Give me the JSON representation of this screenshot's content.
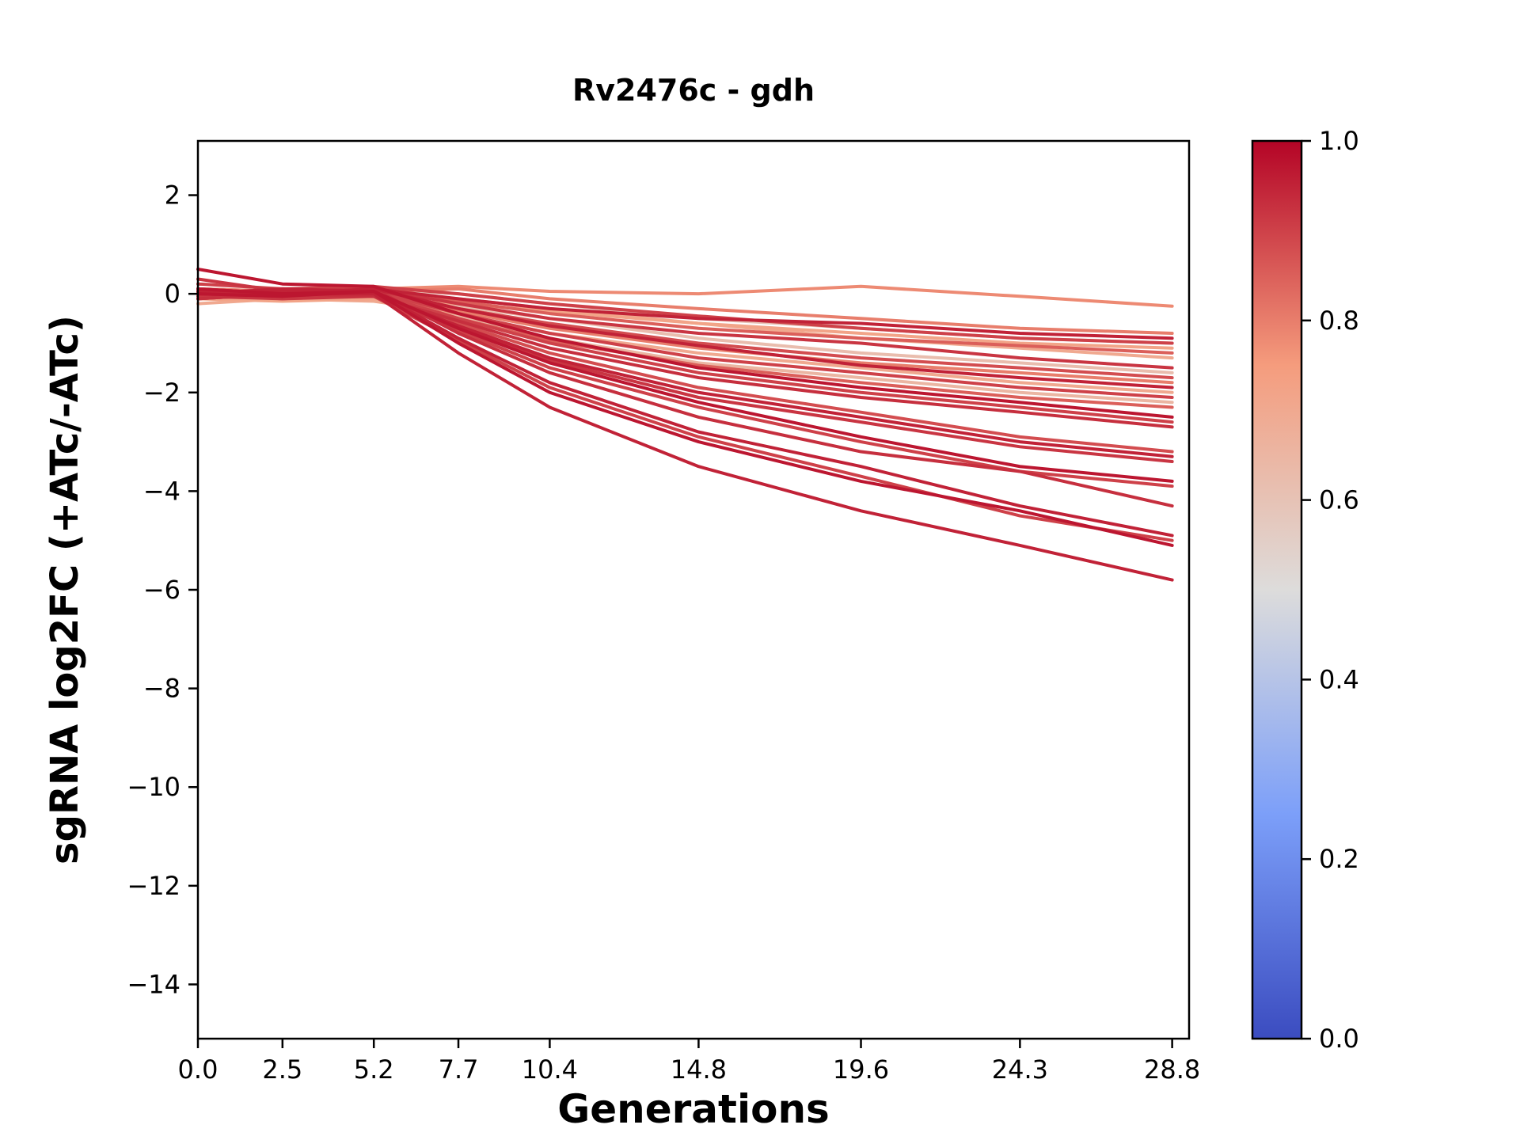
{
  "chart_data": {
    "type": "line",
    "title": "Rv2476c - gdh",
    "xlabel": "Generations",
    "ylabel": "sgRNA log2FC (+ATc/-ATc)",
    "grid": false,
    "legend": "none (colorbar on right)",
    "x": [
      0.0,
      2.5,
      5.2,
      7.7,
      10.4,
      14.8,
      19.6,
      24.3,
      28.8
    ],
    "x_tick_labels": [
      "0.0",
      "2.5",
      "5.2",
      "7.7",
      "10.4",
      "14.8",
      "19.6",
      "24.3",
      "28.8"
    ],
    "y_ticks": [
      2,
      0,
      -2,
      -4,
      -6,
      -8,
      -10,
      -12,
      -14
    ],
    "y_tick_labels": [
      "2",
      "0",
      "−2",
      "−4",
      "−6",
      "−8",
      "−10",
      "−12",
      "−14"
    ],
    "xlim": [
      0,
      29.3
    ],
    "ylim": [
      -15.1,
      3.1
    ],
    "colormap": {
      "name": "coolwarm",
      "stops": [
        [
          0.0,
          "#3b4cc0"
        ],
        [
          0.25,
          "#7c9ff9"
        ],
        [
          0.5,
          "#dddcdb"
        ],
        [
          0.75,
          "#f59c7d"
        ],
        [
          1.0,
          "#b40426"
        ]
      ]
    },
    "colorbar": {
      "min": 0.0,
      "max": 1.0,
      "tick_values": [
        0.0,
        0.2,
        0.4,
        0.6,
        0.8,
        1.0
      ],
      "tick_labels": [
        "0.0",
        "0.2",
        "0.4",
        "0.6",
        "0.8",
        "1.0"
      ]
    },
    "series": [
      {
        "color_value": 0.78,
        "y": [
          0.1,
          0.05,
          0.1,
          0.15,
          0.05,
          0.0,
          0.15,
          -0.05,
          -0.25
        ]
      },
      {
        "color_value": 0.8,
        "y": [
          0.0,
          -0.05,
          0.05,
          0.1,
          -0.1,
          -0.3,
          -0.5,
          -0.7,
          -0.8
        ]
      },
      {
        "color_value": 0.95,
        "y": [
          0.05,
          0.0,
          0.1,
          -0.1,
          -0.3,
          -0.5,
          -0.6,
          -0.8,
          -0.9
        ]
      },
      {
        "color_value": 0.9,
        "y": [
          0.2,
          0.1,
          0.15,
          0.0,
          -0.2,
          -0.45,
          -0.7,
          -0.9,
          -1.0
        ]
      },
      {
        "color_value": 0.72,
        "y": [
          -0.1,
          -0.15,
          -0.1,
          -0.2,
          -0.35,
          -0.6,
          -0.8,
          -1.0,
          -1.1
        ]
      },
      {
        "color_value": 0.85,
        "y": [
          0.0,
          0.05,
          0.0,
          -0.15,
          -0.4,
          -0.7,
          -0.9,
          -1.05,
          -1.2
        ]
      },
      {
        "color_value": 0.7,
        "y": [
          0.1,
          0.0,
          0.05,
          -0.1,
          -0.3,
          -0.6,
          -0.9,
          -1.1,
          -1.3
        ]
      },
      {
        "color_value": 0.92,
        "y": [
          0.3,
          0.05,
          0.1,
          -0.2,
          -0.5,
          -0.8,
          -1.0,
          -1.3,
          -1.5
        ]
      },
      {
        "color_value": 0.62,
        "y": [
          0.0,
          -0.1,
          -0.05,
          -0.25,
          -0.5,
          -0.9,
          -1.2,
          -1.4,
          -1.6
        ]
      },
      {
        "color_value": 0.88,
        "y": [
          -0.1,
          0.0,
          0.05,
          -0.3,
          -0.6,
          -1.0,
          -1.3,
          -1.5,
          -1.7
        ]
      },
      {
        "color_value": 0.8,
        "y": [
          0.1,
          0.05,
          0.0,
          -0.35,
          -0.7,
          -1.1,
          -1.4,
          -1.6,
          -1.8
        ]
      },
      {
        "color_value": 0.95,
        "y": [
          0.0,
          -0.05,
          0.1,
          -0.3,
          -0.65,
          -1.05,
          -1.45,
          -1.7,
          -1.9
        ]
      },
      {
        "color_value": 0.7,
        "y": [
          -0.2,
          -0.1,
          -0.15,
          -0.4,
          -0.8,
          -1.2,
          -1.5,
          -1.8,
          -2.0
        ]
      },
      {
        "color_value": 0.9,
        "y": [
          0.05,
          0.0,
          0.05,
          -0.4,
          -0.8,
          -1.3,
          -1.6,
          -1.9,
          -2.1
        ]
      },
      {
        "color_value": 0.65,
        "y": [
          0.1,
          -0.05,
          0.0,
          -0.45,
          -0.9,
          -1.4,
          -1.7,
          -2.0,
          -2.2
        ]
      },
      {
        "color_value": 0.85,
        "y": [
          0.0,
          0.1,
          0.05,
          -0.5,
          -0.95,
          -1.45,
          -1.8,
          -2.1,
          -2.3
        ]
      },
      {
        "color_value": 0.97,
        "y": [
          0.5,
          0.2,
          0.15,
          -0.4,
          -0.9,
          -1.5,
          -1.9,
          -2.2,
          -2.5
        ]
      },
      {
        "color_value": 0.9,
        "y": [
          0.0,
          -0.1,
          0.0,
          -0.5,
          -1.0,
          -1.6,
          -2.0,
          -2.3,
          -2.6
        ]
      },
      {
        "color_value": 0.93,
        "y": [
          -0.1,
          0.0,
          -0.05,
          -0.55,
          -1.1,
          -1.7,
          -2.1,
          -2.4,
          -2.7
        ]
      },
      {
        "color_value": 0.88,
        "y": [
          0.1,
          0.0,
          0.1,
          -0.6,
          -1.2,
          -1.9,
          -2.4,
          -2.9,
          -3.2
        ]
      },
      {
        "color_value": 0.95,
        "y": [
          0.0,
          0.05,
          0.0,
          -0.65,
          -1.3,
          -2.0,
          -2.5,
          -3.0,
          -3.3
        ]
      },
      {
        "color_value": 0.92,
        "y": [
          -0.05,
          -0.1,
          -0.05,
          -0.7,
          -1.35,
          -2.1,
          -2.6,
          -3.1,
          -3.4
        ]
      },
      {
        "color_value": 0.97,
        "y": [
          0.1,
          0.0,
          0.05,
          -0.7,
          -1.4,
          -2.2,
          -2.9,
          -3.5,
          -3.8
        ]
      },
      {
        "color_value": 0.9,
        "y": [
          0.0,
          -0.05,
          0.0,
          -0.75,
          -1.5,
          -2.3,
          -3.0,
          -3.6,
          -3.9
        ]
      },
      {
        "color_value": 0.93,
        "y": [
          0.05,
          0.0,
          0.1,
          -0.8,
          -1.6,
          -2.5,
          -3.2,
          -3.6,
          -4.3
        ]
      },
      {
        "color_value": 0.95,
        "y": [
          0.0,
          0.1,
          0.05,
          -0.9,
          -1.8,
          -2.8,
          -3.5,
          -4.3,
          -4.9
        ]
      },
      {
        "color_value": 0.9,
        "y": [
          -0.1,
          0.0,
          -0.05,
          -0.95,
          -1.9,
          -2.9,
          -3.7,
          -4.5,
          -5.0
        ]
      },
      {
        "color_value": 0.97,
        "y": [
          0.0,
          -0.05,
          0.05,
          -1.0,
          -2.0,
          -3.0,
          -3.8,
          -4.4,
          -5.1
        ]
      },
      {
        "color_value": 0.95,
        "y": [
          0.1,
          0.0,
          0.0,
          -1.2,
          -2.3,
          -3.5,
          -4.4,
          -5.1,
          -5.8
        ]
      },
      {
        "color_value": 0.6,
        "y": [
          0.0,
          0.05,
          0.1,
          0.0,
          -0.2,
          -0.5,
          -0.7,
          -0.9,
          -1.0
        ]
      }
    ]
  }
}
